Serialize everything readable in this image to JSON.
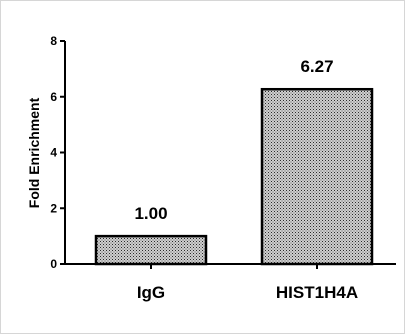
{
  "chart_data": {
    "type": "bar",
    "title": "",
    "xlabel": "",
    "ylabel": "Fold Enrichment",
    "categories": [
      "IgG",
      "HIST1H4A"
    ],
    "values": [
      1.0,
      6.27
    ],
    "data_labels": [
      "1.00",
      "6.27"
    ],
    "ylim": [
      0,
      8
    ],
    "yticks": [
      0,
      2,
      4,
      6,
      8
    ],
    "ytick_labels": [
      "0",
      "2",
      "4",
      "6",
      "8"
    ],
    "grid": false,
    "legend": "none",
    "bar_fill": "crosshatch-gray",
    "colors": {
      "bar_stroke": "#000000",
      "axis": "#000000",
      "frame": "#d6d6d6"
    }
  }
}
